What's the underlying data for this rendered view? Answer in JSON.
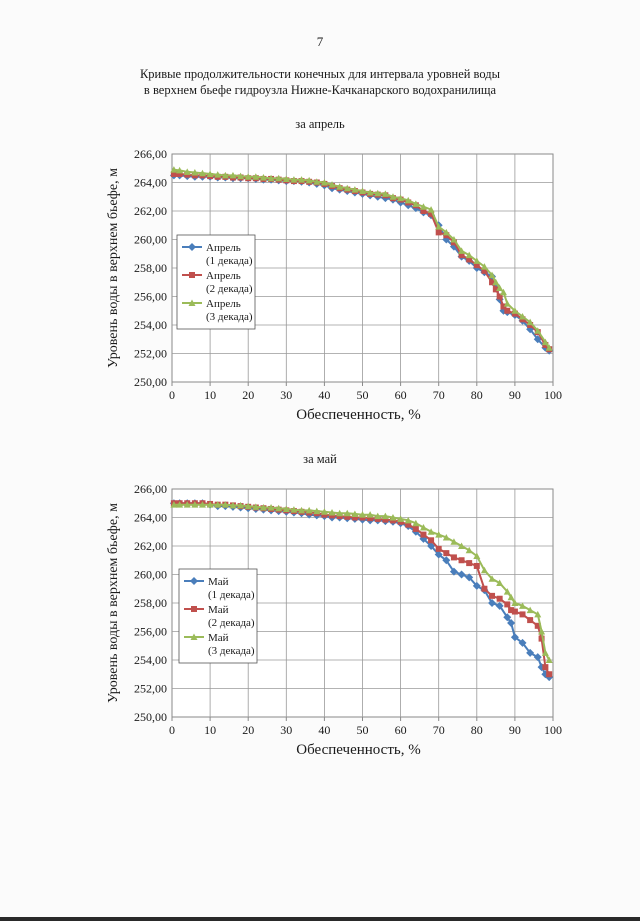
{
  "page": {
    "number": "7",
    "title_line1": "Кривые продолжительности конечных для интервала уровней воды",
    "title_line2": "в верхнем бьефе гидроузла Нижне-Качканарского водохранилища"
  },
  "chart_data": [
    {
      "type": "line",
      "subtitle": "за апрель",
      "xlabel": "Обеспеченность, %",
      "ylabel": "Уровень воды в верхнем бьефе, м",
      "xlim": [
        0,
        100
      ],
      "ylim": [
        250,
        266
      ],
      "xticks": [
        "0",
        "10",
        "20",
        "30",
        "40",
        "50",
        "60",
        "70",
        "80",
        "90",
        "100"
      ],
      "yticks": [
        "250,00",
        "252,00",
        "254,00",
        "256,00",
        "258,00",
        "260,00",
        "262,00",
        "264,00",
        "266,00"
      ],
      "grid": true,
      "legend_position": "left-middle",
      "series": [
        {
          "legend_line1": "Апрель",
          "legend_line2": "(1 декада)",
          "color": "#4a7ebb",
          "marker": "diamond",
          "x": [
            0.5,
            2,
            4,
            6,
            8,
            10,
            12,
            14,
            16,
            18,
            20,
            22,
            24,
            26,
            28,
            30,
            32,
            34,
            36,
            38,
            40,
            42,
            44,
            46,
            48,
            50,
            52,
            54,
            56,
            58,
            60,
            62,
            64,
            66,
            68,
            70,
            72,
            74,
            76,
            78,
            80,
            82,
            84,
            85,
            86,
            87,
            88,
            90,
            92,
            94,
            96,
            98,
            99
          ],
          "y": [
            264.5,
            264.5,
            264.45,
            264.4,
            264.4,
            264.4,
            264.35,
            264.35,
            264.3,
            264.3,
            264.3,
            264.25,
            264.2,
            264.2,
            264.15,
            264.1,
            264.1,
            264.05,
            264.0,
            263.9,
            263.8,
            263.6,
            263.5,
            263.4,
            263.3,
            263.2,
            263.1,
            263.0,
            262.9,
            262.8,
            262.6,
            262.4,
            262.2,
            261.9,
            261.7,
            261.0,
            260.0,
            259.5,
            258.8,
            258.5,
            258.0,
            257.7,
            257.4,
            256.8,
            255.8,
            255.0,
            254.9,
            254.7,
            254.3,
            253.7,
            253.0,
            252.4,
            252.2
          ]
        },
        {
          "legend_line1": "Апрель",
          "legend_line2": "(2 декада)",
          "color": "#c0504d",
          "marker": "square",
          "x": [
            0.5,
            2,
            4,
            6,
            8,
            10,
            12,
            14,
            16,
            18,
            20,
            22,
            24,
            26,
            28,
            30,
            32,
            34,
            36,
            38,
            40,
            42,
            44,
            46,
            48,
            50,
            52,
            54,
            56,
            58,
            60,
            62,
            64,
            66,
            68,
            70,
            72,
            74,
            76,
            78,
            80,
            82,
            84,
            85,
            86,
            87,
            88,
            90,
            92,
            94,
            96,
            98,
            99
          ],
          "y": [
            264.6,
            264.6,
            264.55,
            264.5,
            264.5,
            264.45,
            264.4,
            264.4,
            264.35,
            264.35,
            264.3,
            264.3,
            264.25,
            264.25,
            264.2,
            264.15,
            264.1,
            264.1,
            264.05,
            264.0,
            263.9,
            263.75,
            263.6,
            263.5,
            263.4,
            263.3,
            263.2,
            263.15,
            263.1,
            262.9,
            262.8,
            262.6,
            262.4,
            262.0,
            261.8,
            260.5,
            260.3,
            259.8,
            258.9,
            258.6,
            258.2,
            257.8,
            257.0,
            256.5,
            256.0,
            255.3,
            255.0,
            254.8,
            254.4,
            254.0,
            253.5,
            252.6,
            252.3
          ]
        },
        {
          "legend_line1": "Апрель",
          "legend_line2": "(3 декада)",
          "color": "#9bbb59",
          "marker": "triangle",
          "x": [
            0.5,
            2,
            4,
            6,
            8,
            10,
            12,
            14,
            16,
            18,
            20,
            22,
            24,
            26,
            28,
            30,
            32,
            34,
            36,
            38,
            40,
            42,
            44,
            46,
            48,
            50,
            52,
            54,
            56,
            58,
            60,
            62,
            64,
            66,
            68,
            70,
            72,
            74,
            76,
            78,
            80,
            82,
            84,
            85,
            86,
            87,
            88,
            90,
            92,
            94,
            96,
            98,
            99
          ],
          "y": [
            264.9,
            264.85,
            264.75,
            264.7,
            264.65,
            264.6,
            264.55,
            264.5,
            264.5,
            264.45,
            264.4,
            264.4,
            264.35,
            264.3,
            264.3,
            264.25,
            264.2,
            264.2,
            264.15,
            264.05,
            264.0,
            263.85,
            263.7,
            263.6,
            263.5,
            263.4,
            263.3,
            263.25,
            263.2,
            263.0,
            262.9,
            262.75,
            262.5,
            262.3,
            262.1,
            260.9,
            260.5,
            260.0,
            259.2,
            258.9,
            258.5,
            258.1,
            257.5,
            257.0,
            256.6,
            256.3,
            255.5,
            255.0,
            254.6,
            254.2,
            253.6,
            252.8,
            252.4
          ]
        }
      ]
    },
    {
      "type": "line",
      "subtitle": "за май",
      "xlabel": "Обеспеченность, %",
      "ylabel": "Уровень воды в верхнем бьефе, м",
      "xlim": [
        0,
        100
      ],
      "ylim": [
        250,
        266
      ],
      "xticks": [
        "0",
        "10",
        "20",
        "30",
        "40",
        "50",
        "60",
        "70",
        "80",
        "90",
        "100"
      ],
      "yticks": [
        "250,00",
        "252,00",
        "254,00",
        "256,00",
        "258,00",
        "260,00",
        "262,00",
        "264,00",
        "266,00"
      ],
      "grid": true,
      "legend_position": "bottom-middle",
      "series": [
        {
          "legend_line1": "Май",
          "legend_line2": "(1 декада)",
          "color": "#4a7ebb",
          "marker": "diamond",
          "x": [
            0.5,
            2,
            4,
            6,
            8,
            10,
            12,
            14,
            16,
            18,
            20,
            22,
            24,
            26,
            28,
            30,
            32,
            34,
            36,
            38,
            40,
            42,
            44,
            46,
            48,
            50,
            52,
            54,
            56,
            58,
            60,
            62,
            64,
            66,
            68,
            70,
            72,
            74,
            76,
            78,
            80,
            82,
            84,
            86,
            88,
            89,
            90,
            92,
            94,
            96,
            97,
            98,
            99
          ],
          "y": [
            265.0,
            265.0,
            265.0,
            265.0,
            265.0,
            264.9,
            264.8,
            264.8,
            264.75,
            264.7,
            264.65,
            264.6,
            264.55,
            264.5,
            264.45,
            264.4,
            264.35,
            264.3,
            264.2,
            264.15,
            264.1,
            264.0,
            264.0,
            263.95,
            263.9,
            263.85,
            263.8,
            263.8,
            263.75,
            263.7,
            263.6,
            263.4,
            263.0,
            262.5,
            262.0,
            261.4,
            261.0,
            260.2,
            260.0,
            259.8,
            259.2,
            258.9,
            258.0,
            257.8,
            257.0,
            256.6,
            255.6,
            255.2,
            254.5,
            254.2,
            253.5,
            253.0,
            252.8
          ]
        },
        {
          "legend_line1": "Май",
          "legend_line2": "(2 декада)",
          "color": "#c0504d",
          "marker": "square",
          "x": [
            0.5,
            2,
            4,
            6,
            8,
            10,
            12,
            14,
            16,
            18,
            20,
            22,
            24,
            26,
            28,
            30,
            32,
            34,
            36,
            38,
            40,
            42,
            44,
            46,
            48,
            50,
            52,
            54,
            56,
            58,
            60,
            62,
            64,
            66,
            68,
            70,
            72,
            74,
            76,
            78,
            80,
            82,
            84,
            86,
            88,
            89,
            90,
            92,
            94,
            96,
            97,
            98,
            99
          ],
          "y": [
            265.0,
            265.0,
            265.0,
            265.0,
            265.0,
            264.95,
            264.9,
            264.9,
            264.85,
            264.8,
            264.75,
            264.7,
            264.65,
            264.6,
            264.55,
            264.5,
            264.45,
            264.4,
            264.35,
            264.3,
            264.2,
            264.15,
            264.1,
            264.05,
            264.0,
            264.0,
            263.95,
            263.9,
            263.85,
            263.8,
            263.7,
            263.5,
            263.2,
            262.8,
            262.4,
            261.8,
            261.5,
            261.2,
            261.0,
            260.8,
            260.6,
            259.0,
            258.5,
            258.3,
            257.9,
            257.5,
            257.4,
            257.2,
            256.8,
            256.4,
            255.5,
            253.5,
            253.0
          ]
        },
        {
          "legend_line1": "Май",
          "legend_line2": "(3 декада)",
          "color": "#9bbb59",
          "marker": "triangle",
          "x": [
            0.5,
            2,
            4,
            6,
            8,
            10,
            12,
            14,
            16,
            18,
            20,
            22,
            24,
            26,
            28,
            30,
            32,
            34,
            36,
            38,
            40,
            42,
            44,
            46,
            48,
            50,
            52,
            54,
            56,
            58,
            60,
            62,
            64,
            66,
            68,
            70,
            72,
            74,
            76,
            78,
            80,
            82,
            84,
            86,
            88,
            89,
            90,
            92,
            94,
            96,
            97,
            98,
            99
          ],
          "y": [
            264.9,
            264.9,
            264.9,
            264.9,
            264.9,
            264.9,
            264.9,
            264.9,
            264.85,
            264.85,
            264.8,
            264.75,
            264.7,
            264.7,
            264.65,
            264.6,
            264.55,
            264.5,
            264.5,
            264.45,
            264.4,
            264.35,
            264.3,
            264.3,
            264.25,
            264.2,
            264.2,
            264.1,
            264.1,
            264.0,
            263.9,
            263.8,
            263.6,
            263.3,
            263.0,
            262.8,
            262.6,
            262.3,
            262.0,
            261.7,
            261.3,
            260.3,
            259.7,
            259.4,
            258.8,
            258.4,
            258.0,
            257.8,
            257.5,
            257.2,
            256.0,
            254.5,
            254.0
          ]
        }
      ]
    }
  ]
}
